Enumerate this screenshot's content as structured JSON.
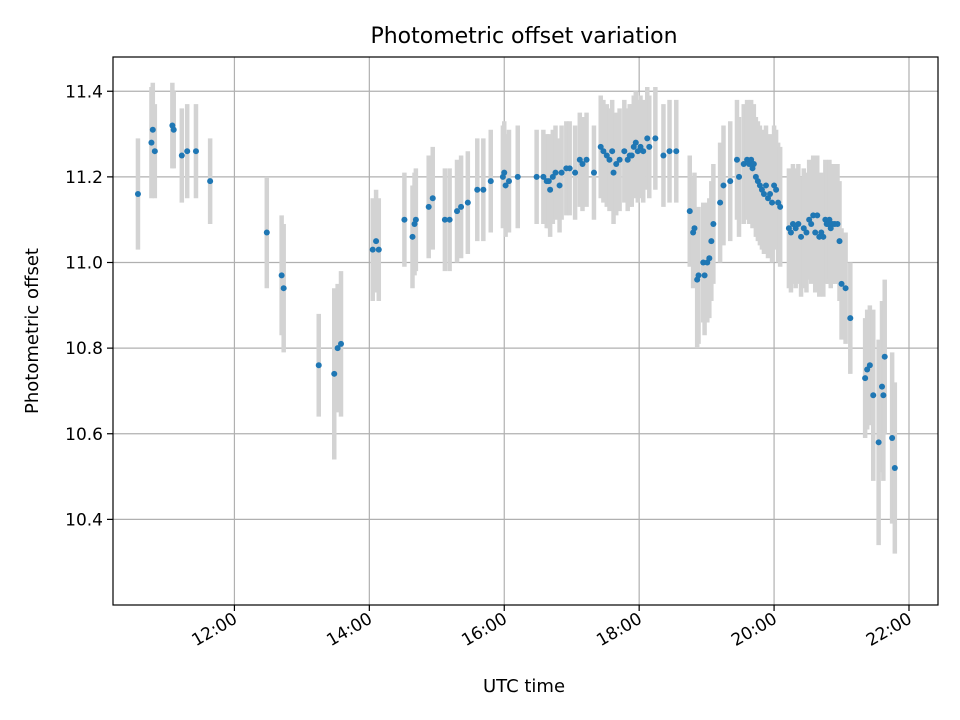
{
  "chart_data": {
    "type": "scatter",
    "title": "Photometric offset variation",
    "xlabel": "UTC time",
    "ylabel": "Photometric offset",
    "x_unit": "hours UTC",
    "xlim": [
      10.2,
      22.43
    ],
    "ylim": [
      10.2,
      11.48
    ],
    "x_ticks": [
      {
        "value": 12,
        "label": "12:00"
      },
      {
        "value": 14,
        "label": "14:00"
      },
      {
        "value": 16,
        "label": "16:00"
      },
      {
        "value": 18,
        "label": "18:00"
      },
      {
        "value": 20,
        "label": "20:00"
      },
      {
        "value": 22,
        "label": "22:00"
      }
    ],
    "y_ticks": [
      {
        "value": 10.4,
        "label": "10.4"
      },
      {
        "value": 10.6,
        "label": "10.6"
      },
      {
        "value": 10.8,
        "label": "10.8"
      },
      {
        "value": 11.0,
        "label": "11.0"
      },
      {
        "value": 11.2,
        "label": "11.2"
      },
      {
        "value": 11.4,
        "label": "11.4"
      }
    ],
    "grid": true,
    "colors": {
      "points": "#1f77b4",
      "errorbars": "#d3d3d3"
    },
    "points": [
      [
        10.57,
        11.16,
        0.13
      ],
      [
        10.77,
        11.28,
        0.13
      ],
      [
        10.79,
        11.31,
        0.11
      ],
      [
        10.82,
        11.26,
        0.11
      ],
      [
        11.08,
        11.32,
        0.1
      ],
      [
        11.1,
        11.31,
        0.09
      ],
      [
        11.22,
        11.25,
        0.11
      ],
      [
        11.3,
        11.26,
        0.11
      ],
      [
        11.43,
        11.26,
        0.11
      ],
      [
        11.64,
        11.19,
        0.1
      ],
      [
        12.48,
        11.07,
        0.13
      ],
      [
        12.7,
        10.97,
        0.14
      ],
      [
        12.73,
        10.94,
        0.15
      ],
      [
        13.25,
        10.76,
        0.12
      ],
      [
        13.48,
        10.74,
        0.2
      ],
      [
        13.53,
        10.8,
        0.15
      ],
      [
        13.58,
        10.81,
        0.17
      ],
      [
        14.05,
        11.03,
        0.12
      ],
      [
        14.1,
        11.05,
        0.12
      ],
      [
        14.14,
        11.03,
        0.12
      ],
      [
        14.52,
        11.1,
        0.11
      ],
      [
        14.64,
        11.06,
        0.12
      ],
      [
        14.67,
        11.09,
        0.12
      ],
      [
        14.69,
        11.1,
        0.12
      ],
      [
        14.88,
        11.13,
        0.12
      ],
      [
        14.94,
        11.15,
        0.12
      ],
      [
        15.12,
        11.1,
        0.12
      ],
      [
        15.19,
        11.1,
        0.12
      ],
      [
        15.3,
        11.12,
        0.12
      ],
      [
        15.36,
        11.13,
        0.12
      ],
      [
        15.46,
        11.14,
        0.12
      ],
      [
        15.6,
        11.17,
        0.12
      ],
      [
        15.69,
        11.17,
        0.12
      ],
      [
        15.8,
        11.19,
        0.12
      ],
      [
        15.98,
        11.2,
        0.12
      ],
      [
        16.0,
        11.21,
        0.12
      ],
      [
        16.02,
        11.18,
        0.12
      ],
      [
        16.07,
        11.19,
        0.12
      ],
      [
        16.2,
        11.2,
        0.12
      ],
      [
        16.48,
        11.2,
        0.11
      ],
      [
        16.58,
        11.2,
        0.11
      ],
      [
        16.63,
        11.19,
        0.11
      ],
      [
        16.66,
        11.19,
        0.11
      ],
      [
        16.68,
        11.17,
        0.11
      ],
      [
        16.72,
        11.2,
        0.11
      ],
      [
        16.76,
        11.21,
        0.11
      ],
      [
        16.82,
        11.18,
        0.11
      ],
      [
        16.85,
        11.21,
        0.11
      ],
      [
        16.92,
        11.22,
        0.11
      ],
      [
        16.97,
        11.22,
        0.11
      ],
      [
        17.05,
        11.21,
        0.11
      ],
      [
        17.12,
        11.24,
        0.11
      ],
      [
        17.16,
        11.23,
        0.11
      ],
      [
        17.22,
        11.24,
        0.11
      ],
      [
        17.33,
        11.21,
        0.11
      ],
      [
        17.43,
        11.27,
        0.12
      ],
      [
        17.47,
        11.26,
        0.12
      ],
      [
        17.52,
        11.25,
        0.12
      ],
      [
        17.56,
        11.24,
        0.12
      ],
      [
        17.6,
        11.26,
        0.12
      ],
      [
        17.62,
        11.21,
        0.12
      ],
      [
        17.66,
        11.23,
        0.12
      ],
      [
        17.71,
        11.24,
        0.12
      ],
      [
        17.78,
        11.26,
        0.12
      ],
      [
        17.83,
        11.24,
        0.12
      ],
      [
        17.86,
        11.25,
        0.12
      ],
      [
        17.89,
        11.25,
        0.12
      ],
      [
        17.92,
        11.27,
        0.12
      ],
      [
        17.95,
        11.28,
        0.12
      ],
      [
        17.98,
        11.26,
        0.12
      ],
      [
        18.02,
        11.27,
        0.12
      ],
      [
        18.06,
        11.26,
        0.12
      ],
      [
        18.12,
        11.29,
        0.12
      ],
      [
        18.15,
        11.27,
        0.12
      ],
      [
        18.24,
        11.29,
        0.12
      ],
      [
        18.36,
        11.25,
        0.12
      ],
      [
        18.45,
        11.26,
        0.12
      ],
      [
        18.55,
        11.26,
        0.12
      ],
      [
        18.75,
        11.12,
        0.13
      ],
      [
        18.8,
        11.07,
        0.13
      ],
      [
        18.82,
        11.08,
        0.13
      ],
      [
        18.86,
        10.96,
        0.16
      ],
      [
        18.88,
        10.97,
        0.16
      ],
      [
        18.95,
        11.0,
        0.14
      ],
      [
        18.97,
        10.97,
        0.14
      ],
      [
        19.01,
        11.0,
        0.14
      ],
      [
        19.04,
        11.01,
        0.14
      ],
      [
        19.07,
        11.05,
        0.14
      ],
      [
        19.1,
        11.09,
        0.14
      ],
      [
        19.2,
        11.14,
        0.14
      ],
      [
        19.25,
        11.18,
        0.14
      ],
      [
        19.35,
        11.19,
        0.14
      ],
      [
        19.45,
        11.24,
        0.14
      ],
      [
        19.48,
        11.2,
        0.14
      ],
      [
        19.55,
        11.23,
        0.14
      ],
      [
        19.6,
        11.24,
        0.14
      ],
      [
        19.63,
        11.23,
        0.14
      ],
      [
        19.66,
        11.24,
        0.14
      ],
      [
        19.68,
        11.22,
        0.14
      ],
      [
        19.7,
        11.23,
        0.14
      ],
      [
        19.73,
        11.2,
        0.14
      ],
      [
        19.76,
        11.19,
        0.14
      ],
      [
        19.79,
        11.18,
        0.14
      ],
      [
        19.82,
        11.17,
        0.14
      ],
      [
        19.85,
        11.16,
        0.14
      ],
      [
        19.88,
        11.18,
        0.14
      ],
      [
        19.91,
        11.15,
        0.14
      ],
      [
        19.94,
        11.16,
        0.14
      ],
      [
        19.97,
        11.14,
        0.14
      ],
      [
        20.0,
        11.18,
        0.14
      ],
      [
        20.03,
        11.17,
        0.14
      ],
      [
        20.06,
        11.14,
        0.14
      ],
      [
        20.09,
        11.13,
        0.14
      ],
      [
        20.22,
        11.08,
        0.14
      ],
      [
        20.25,
        11.07,
        0.14
      ],
      [
        20.28,
        11.09,
        0.14
      ],
      [
        20.32,
        11.08,
        0.14
      ],
      [
        20.36,
        11.09,
        0.14
      ],
      [
        20.4,
        11.06,
        0.14
      ],
      [
        20.44,
        11.08,
        0.14
      ],
      [
        20.48,
        11.07,
        0.14
      ],
      [
        20.52,
        11.1,
        0.14
      ],
      [
        20.55,
        11.09,
        0.14
      ],
      [
        20.58,
        11.11,
        0.14
      ],
      [
        20.61,
        11.07,
        0.14
      ],
      [
        20.64,
        11.11,
        0.14
      ],
      [
        20.67,
        11.06,
        0.14
      ],
      [
        20.7,
        11.07,
        0.14
      ],
      [
        20.73,
        11.06,
        0.14
      ],
      [
        20.76,
        11.1,
        0.14
      ],
      [
        20.78,
        11.09,
        0.14
      ],
      [
        20.8,
        11.09,
        0.14
      ],
      [
        20.82,
        11.1,
        0.14
      ],
      [
        20.84,
        11.08,
        0.14
      ],
      [
        20.87,
        11.09,
        0.14
      ],
      [
        20.9,
        11.09,
        0.14
      ],
      [
        20.94,
        11.09,
        0.14
      ],
      [
        20.97,
        11.05,
        0.14
      ],
      [
        21.0,
        10.95,
        0.13
      ],
      [
        21.06,
        10.94,
        0.13
      ],
      [
        21.13,
        10.87,
        0.13
      ],
      [
        21.35,
        10.73,
        0.14
      ],
      [
        21.38,
        10.75,
        0.14
      ],
      [
        21.42,
        10.76,
        0.14
      ],
      [
        21.47,
        10.69,
        0.2
      ],
      [
        21.55,
        10.58,
        0.24
      ],
      [
        21.6,
        10.71,
        0.2
      ],
      [
        21.62,
        10.69,
        0.2
      ],
      [
        21.64,
        10.78,
        0.18
      ],
      [
        21.75,
        10.59,
        0.2
      ],
      [
        21.79,
        10.52,
        0.2
      ]
    ]
  }
}
